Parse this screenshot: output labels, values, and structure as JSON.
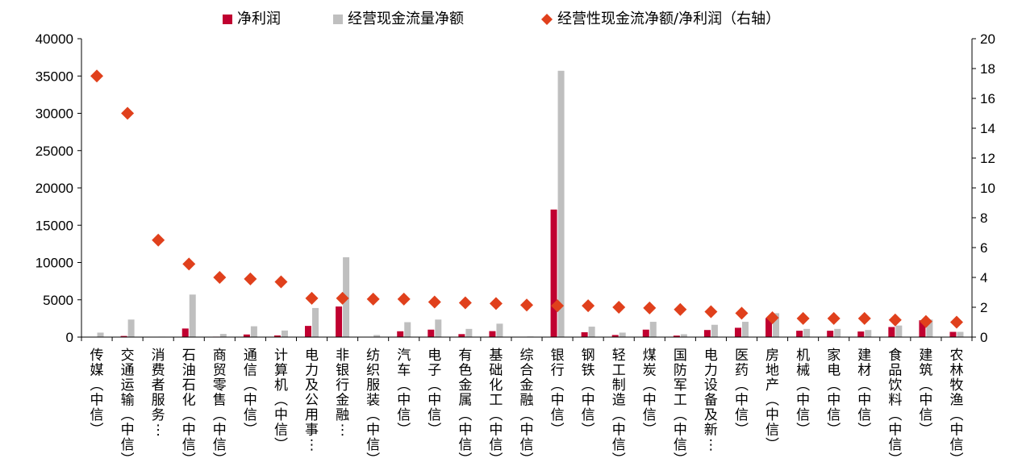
{
  "chart_data": {
    "type": "bar",
    "categories": [
      "传媒(中信)",
      "交通运输(中信)",
      "消费者服务…",
      "石油石化(中信)",
      "商贸零售(中信)",
      "通信(中信)",
      "计算机(中信)",
      "电力及公用事…",
      "非银行金融…",
      "纺织服装(中信)",
      "汽车(中信)",
      "电子(中信)",
      "有色金属(中信)",
      "基础化工(中信)",
      "综合金融(中信)",
      "银行(中信)",
      "钢铁(中信)",
      "轻工制造(中信)",
      "煤炭(中信)",
      "国防军工(中信)",
      "电力设备及新…",
      "医药(中信)",
      "房地产(中信)",
      "机械(中信)",
      "家电(中信)",
      "建材(中信)",
      "食品饮料(中信)",
      "建筑(中信)",
      "农林牧渔(中信)"
    ],
    "series": [
      {
        "name": "净利润",
        "type": "bar",
        "axis": "left",
        "color": "#C00030",
        "values": [
          30,
          150,
          10,
          1150,
          60,
          350,
          220,
          1500,
          4100,
          40,
          780,
          1000,
          400,
          800,
          50,
          17100,
          650,
          280,
          1000,
          200,
          950,
          1250,
          2550,
          850,
          850,
          750,
          1350,
          2250,
          700
        ]
      },
      {
        "name": "经营现金流量净额",
        "type": "bar",
        "axis": "left",
        "color": "#BFBFBF",
        "values": [
          600,
          2350,
          60,
          5700,
          420,
          1450,
          880,
          3900,
          10700,
          280,
          2000,
          2350,
          1100,
          1800,
          80,
          35700,
          1400,
          600,
          2050,
          380,
          1650,
          2050,
          3200,
          1100,
          1100,
          950,
          1550,
          2350,
          700
        ]
      },
      {
        "name": "经营性现金流净额/净利润（右轴）",
        "type": "scatter",
        "axis": "right",
        "color": "#E0401C",
        "values": [
          17.5,
          15.0,
          6.5,
          4.9,
          4.0,
          3.9,
          3.7,
          2.6,
          2.6,
          2.55,
          2.55,
          2.35,
          2.3,
          2.25,
          2.15,
          2.1,
          2.1,
          2.0,
          1.95,
          1.85,
          1.7,
          1.6,
          1.3,
          1.25,
          1.25,
          1.25,
          1.15,
          1.05,
          1.0
        ]
      }
    ],
    "ylim_left": [
      0,
      40000
    ],
    "yticks_left": [
      "0",
      "5000",
      "10000",
      "15000",
      "20000",
      "25000",
      "30000",
      "35000",
      "40000"
    ],
    "ylim_right": [
      0,
      20
    ],
    "yticks_right": [
      "0",
      "2",
      "4",
      "6",
      "8",
      "10",
      "12",
      "14",
      "16",
      "18",
      "20"
    ],
    "legend_position": "top",
    "grid": false
  }
}
